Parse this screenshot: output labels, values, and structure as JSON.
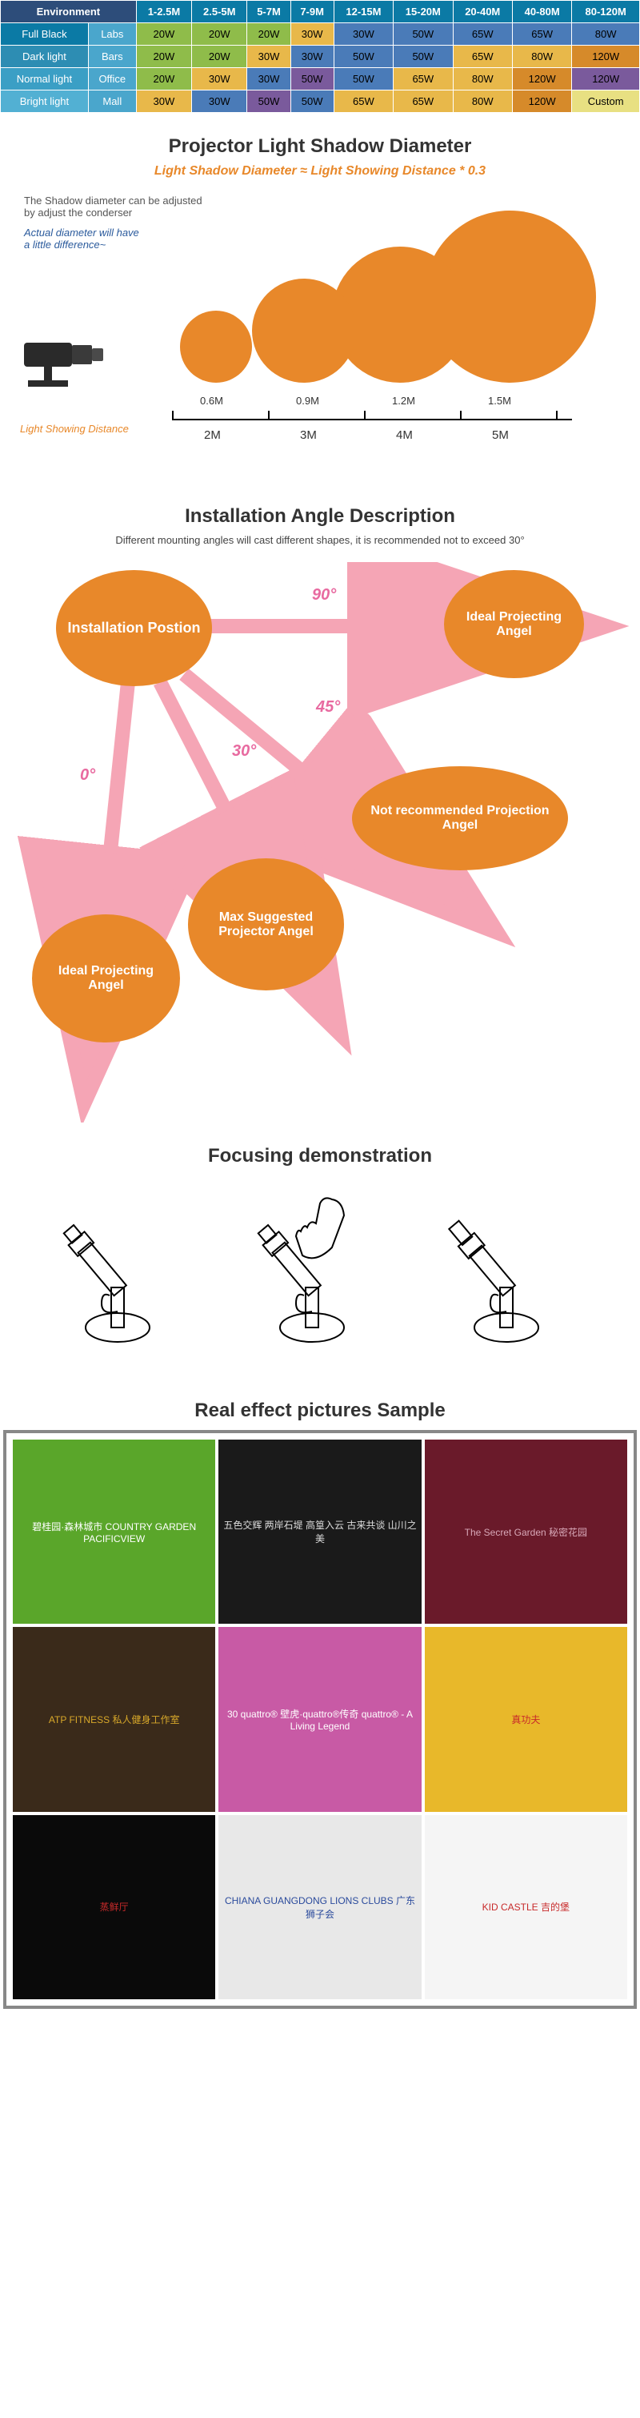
{
  "table": {
    "headers": [
      "Environment",
      "1-2.5M",
      "2.5-5M",
      "5-7M",
      "7-9M",
      "12-15M",
      "15-20M",
      "20-40M",
      "40-80M",
      "80-120M"
    ],
    "rows": [
      {
        "env": "Full Black",
        "sub": "Labs",
        "cells": [
          [
            "20W",
            "g"
          ],
          [
            "20W",
            "g"
          ],
          [
            "20W",
            "g"
          ],
          [
            "30W",
            "y"
          ],
          [
            "30W",
            "b"
          ],
          [
            "50W",
            "b"
          ],
          [
            "65W",
            "b"
          ],
          [
            "65W",
            "b"
          ],
          [
            "80W",
            "b"
          ]
        ]
      },
      {
        "env": "Dark light",
        "sub": "Bars",
        "cells": [
          [
            "20W",
            "g"
          ],
          [
            "20W",
            "g"
          ],
          [
            "30W",
            "y"
          ],
          [
            "30W",
            "b"
          ],
          [
            "50W",
            "b"
          ],
          [
            "50W",
            "b"
          ],
          [
            "65W",
            "y"
          ],
          [
            "80W",
            "y"
          ],
          [
            "120W",
            "o"
          ]
        ]
      },
      {
        "env": "Normal light",
        "sub": "Office",
        "cells": [
          [
            "20W",
            "g"
          ],
          [
            "30W",
            "y"
          ],
          [
            "30W",
            "b"
          ],
          [
            "50W",
            "p"
          ],
          [
            "50W",
            "b"
          ],
          [
            "65W",
            "y"
          ],
          [
            "80W",
            "y"
          ],
          [
            "120W",
            "o"
          ],
          [
            "120W",
            "p"
          ]
        ]
      },
      {
        "env": "Bright light",
        "sub": "Mall",
        "cells": [
          [
            "30W",
            "y"
          ],
          [
            "30W",
            "b"
          ],
          [
            "50W",
            "p"
          ],
          [
            "50W",
            "b"
          ],
          [
            "65W",
            "y"
          ],
          [
            "65W",
            "y"
          ],
          [
            "80W",
            "y"
          ],
          [
            "120W",
            "o"
          ],
          [
            "Custom",
            "cu"
          ]
        ]
      }
    ],
    "row_bg": [
      "fb",
      "dl",
      "nl",
      "bl"
    ]
  },
  "shadow": {
    "title": "Projector Light Shadow Diameter",
    "formula": "Light Shadow Diameter ≈  Light Showing Distance * 0.3",
    "note1": "The Shadow diameter can be adjusted",
    "note2": "by adjust the conderser",
    "note3a": "Actual diameter will have",
    "note3b": "a little difference~",
    "lsd_label": "Light Showing Distance",
    "diam_labels": [
      "0.6M",
      "0.9M",
      "1.2M",
      "1.5M"
    ],
    "dist_labels": [
      "2M",
      "3M",
      "4M",
      "5M"
    ]
  },
  "angle": {
    "title": "Installation Angle Description",
    "note": "Different mounting angles will cast different shapes, it is recommended not to exceed 30°",
    "b_install": "Installation Postion",
    "b_ideal": "Ideal Projecting Angel",
    "b_max": "Max Suggested Projector Angel",
    "b_notrec": "Not recommended Projection Angel",
    "d0": "0°",
    "d30": "30°",
    "d45": "45°",
    "d90": "90°"
  },
  "focus": {
    "title": "Focusing demonstration"
  },
  "samples": {
    "title": "Real effect pictures Sample",
    "items": [
      {
        "label": "碧桂园·森林城市 COUNTRY GARDEN PACIFICVIEW",
        "bg": "#5aa62a",
        "fg": "#fff"
      },
      {
        "label": "五色交辉 两岸石堤 高篁入云 古来共谈 山川之美",
        "bg": "#1a1a1a",
        "fg": "#ddd"
      },
      {
        "label": "The Secret Garden 秘密花园",
        "bg": "#6a1a2a",
        "fg": "#d8a8b8"
      },
      {
        "label": "ATP FITNESS 私人健身工作室",
        "bg": "#3a2a1a",
        "fg": "#d8a82a"
      },
      {
        "label": "30 quattro® 壁虎·quattro®传奇 quattro® - A Living Legend",
        "bg": "#c85aa5",
        "fg": "#fff"
      },
      {
        "label": "真功夫",
        "bg": "#e8b82a",
        "fg": "#c82a2a"
      },
      {
        "label": "蒸鲜厅",
        "bg": "#0a0a0a",
        "fg": "#c82a2a"
      },
      {
        "label": "CHIANA GUANGDONG LIONS CLUBS 广东狮子会",
        "bg": "#e8e8e8",
        "fg": "#2a4a9c"
      },
      {
        "label": "KID CASTLE 吉的堡",
        "bg": "#f5f5f5",
        "fg": "#c82a2a"
      }
    ]
  }
}
